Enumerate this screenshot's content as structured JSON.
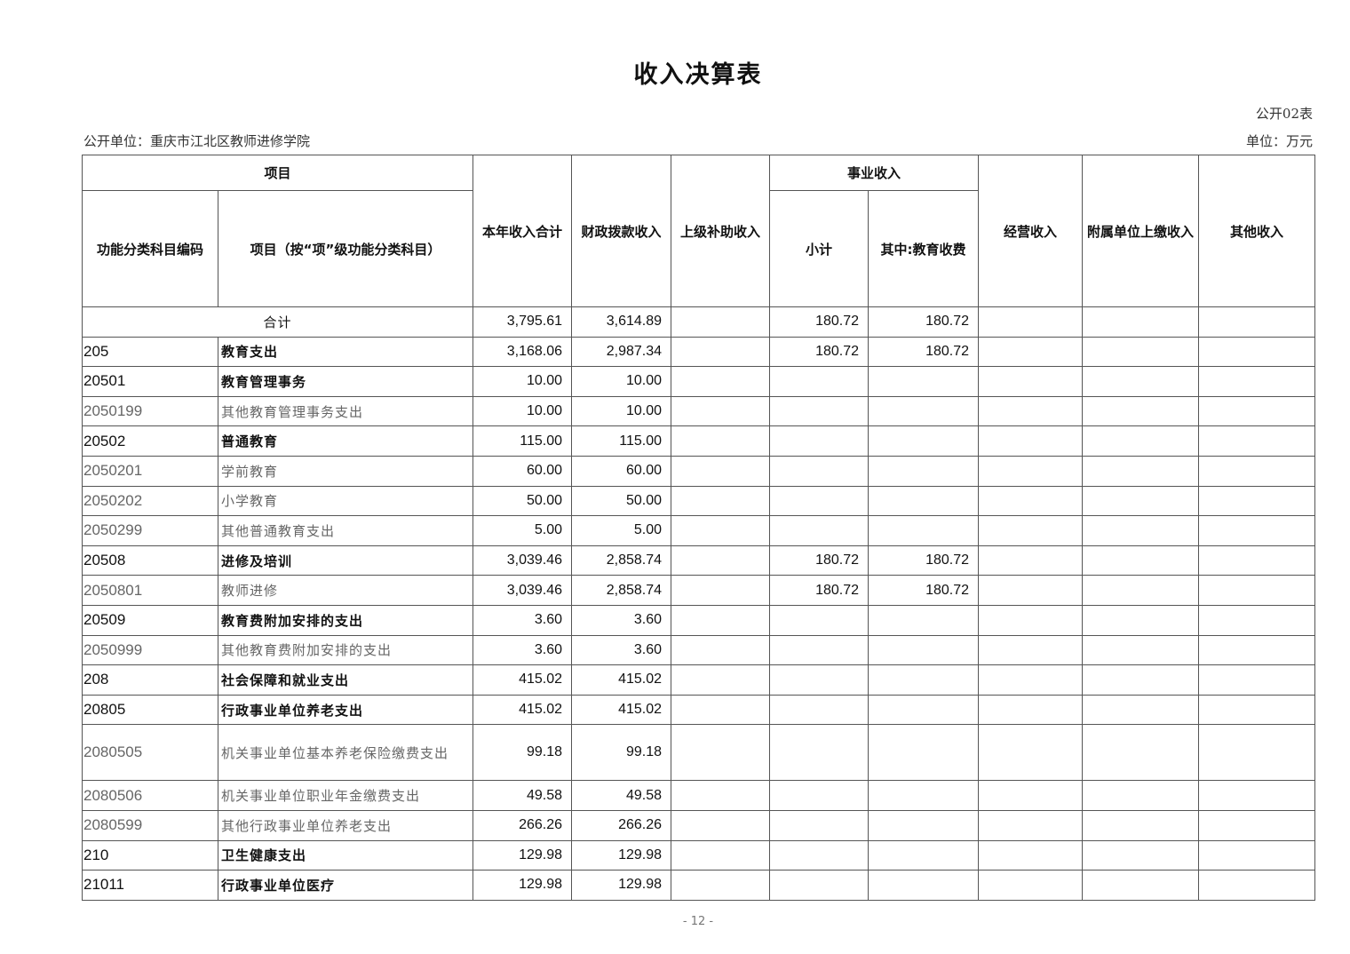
{
  "title": "收入决算表",
  "table_no": "公开02表",
  "unit_name": "公开单位：重庆市江北区教师进修学院",
  "unit": "单位：万元",
  "headers": {
    "project": "项目",
    "code": "功能分类科目编码",
    "name": "项目（按“项”级功能分类科目）",
    "total": "本年收入合计",
    "fiscal": "财政拨款收入",
    "superior": "上级补助收入",
    "business": "事业收入",
    "subtotal": "小计",
    "edu_fee": "其中:教育收费",
    "operating": "经营收入",
    "affiliated": "附属单位上缴收入",
    "other": "其他收入"
  },
  "sum_row": {
    "label": "合计",
    "total": "3,795.61",
    "fiscal": "3,614.89",
    "superior": "",
    "subtotal": "180.72",
    "edu_fee": "180.72",
    "operating": "",
    "affiliated": "",
    "other": ""
  },
  "rows": [
    {
      "code": "205",
      "name": "教育支出",
      "level": "bold",
      "total": "3,168.06",
      "fiscal": "2,987.34",
      "subtotal": "180.72",
      "edu_fee": "180.72"
    },
    {
      "code": "20501",
      "name": "教育管理事务",
      "level": "bold",
      "total": "10.00",
      "fiscal": "10.00",
      "subtotal": "",
      "edu_fee": ""
    },
    {
      "code": "2050199",
      "name": "其他教育管理事务支出",
      "level": "gray",
      "total": "10.00",
      "fiscal": "10.00",
      "subtotal": "",
      "edu_fee": ""
    },
    {
      "code": "20502",
      "name": "普通教育",
      "level": "bold",
      "total": "115.00",
      "fiscal": "115.00",
      "subtotal": "",
      "edu_fee": ""
    },
    {
      "code": "2050201",
      "name": "学前教育",
      "level": "gray",
      "total": "60.00",
      "fiscal": "60.00",
      "subtotal": "",
      "edu_fee": ""
    },
    {
      "code": "2050202",
      "name": "小学教育",
      "level": "gray",
      "total": "50.00",
      "fiscal": "50.00",
      "subtotal": "",
      "edu_fee": ""
    },
    {
      "code": "2050299",
      "name": "其他普通教育支出",
      "level": "gray",
      "total": "5.00",
      "fiscal": "5.00",
      "subtotal": "",
      "edu_fee": ""
    },
    {
      "code": "20508",
      "name": "进修及培训",
      "level": "bold",
      "total": "3,039.46",
      "fiscal": "2,858.74",
      "subtotal": "180.72",
      "edu_fee": "180.72"
    },
    {
      "code": "2050801",
      "name": "教师进修",
      "level": "gray",
      "total": "3,039.46",
      "fiscal": "2,858.74",
      "subtotal": "180.72",
      "edu_fee": "180.72"
    },
    {
      "code": "20509",
      "name": "教育费附加安排的支出",
      "level": "bold",
      "total": "3.60",
      "fiscal": "3.60",
      "subtotal": "",
      "edu_fee": ""
    },
    {
      "code": "2050999",
      "name": "其他教育费附加安排的支出",
      "level": "gray",
      "total": "3.60",
      "fiscal": "3.60",
      "subtotal": "",
      "edu_fee": ""
    },
    {
      "code": "208",
      "name": "社会保障和就业支出",
      "level": "bold",
      "total": "415.02",
      "fiscal": "415.02",
      "subtotal": "",
      "edu_fee": ""
    },
    {
      "code": "20805",
      "name": "行政事业单位养老支出",
      "level": "bold",
      "total": "415.02",
      "fiscal": "415.02",
      "subtotal": "",
      "edu_fee": ""
    },
    {
      "code": "2080505",
      "name": "机关事业单位基本养老保险缴费支出",
      "level": "gray",
      "total": "99.18",
      "fiscal": "99.18",
      "subtotal": "",
      "edu_fee": ""
    },
    {
      "code": "2080506",
      "name": "机关事业单位职业年金缴费支出",
      "level": "gray",
      "total": "49.58",
      "fiscal": "49.58",
      "subtotal": "",
      "edu_fee": ""
    },
    {
      "code": "2080599",
      "name": "其他行政事业单位养老支出",
      "level": "gray",
      "total": "266.26",
      "fiscal": "266.26",
      "subtotal": "",
      "edu_fee": ""
    },
    {
      "code": "210",
      "name": "卫生健康支出",
      "level": "bold",
      "total": "129.98",
      "fiscal": "129.98",
      "subtotal": "",
      "edu_fee": ""
    },
    {
      "code": "21011",
      "name": "行政事业单位医疗",
      "level": "bold",
      "total": "129.98",
      "fiscal": "129.98",
      "subtotal": "",
      "edu_fee": ""
    }
  ],
  "page_number": "- 12 -"
}
